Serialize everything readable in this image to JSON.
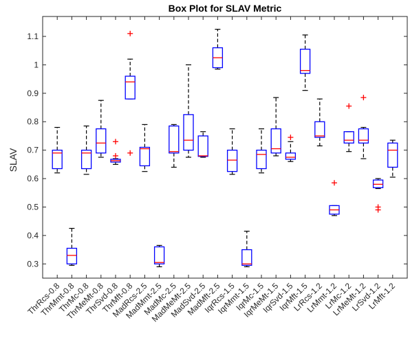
{
  "chart_data": {
    "type": "box",
    "title": "Box Plot for SLAV Metric",
    "xlabel": "",
    "ylabel": "SLAV",
    "ylim": [
      0.25,
      1.17
    ],
    "yticks": [
      0.3,
      0.4,
      0.5,
      0.6,
      0.7,
      0.8,
      0.9,
      1,
      1.1
    ],
    "ytick_labels": [
      "0.3",
      "0.4",
      "0.5",
      "0.6",
      "0.7",
      "0.8",
      "0.9",
      "1",
      "1.1"
    ],
    "grid": false,
    "box_color": "#0000ff",
    "median_color": "#ff0000",
    "whisker_color": "#000000",
    "outlier_color": "#ff0000",
    "categories": [
      "ThrRcs-0.8",
      "ThrMmt-0.8",
      "ThrMc-0.8",
      "ThrMeMt-0.8",
      "ThrSvd-0.8",
      "ThrMft-0.8",
      "MadRcs-2.5",
      "MadMmt-2.5",
      "MadMc-2.5",
      "MadMeMt-2.5",
      "MadSvd-2.5",
      "MadMft-2.5",
      "IqrRcs-1.5",
      "IqrMmt-1.5",
      "IqrMc-1.5",
      "IqrMeMt-1.5",
      "IqrSvd-1.5",
      "IqrMft-1.5",
      "LrRcs-1.2",
      "LrMmt-1.2",
      "LrMc-1.2",
      "LrMeMt-1.2",
      "LrSvd-1.2",
      "LrMft-1.2"
    ],
    "boxes": [
      {
        "whisker_low": 0.62,
        "q1": 0.635,
        "median": 0.69,
        "q3": 0.7,
        "whisker_high": 0.78,
        "outliers": []
      },
      {
        "whisker_low": 0.295,
        "q1": 0.3,
        "median": 0.33,
        "q3": 0.355,
        "whisker_high": 0.425,
        "outliers": []
      },
      {
        "whisker_low": 0.615,
        "q1": 0.635,
        "median": 0.69,
        "q3": 0.7,
        "whisker_high": 0.785,
        "outliers": []
      },
      {
        "whisker_low": 0.675,
        "q1": 0.69,
        "median": 0.725,
        "q3": 0.775,
        "whisker_high": 0.875,
        "outliers": []
      },
      {
        "whisker_low": 0.65,
        "q1": 0.658,
        "median": 0.663,
        "q3": 0.668,
        "whisker_high": 0.67,
        "outliers": [
          0.73,
          0.68
        ]
      },
      {
        "whisker_low": 0.88,
        "q1": 0.88,
        "median": 0.94,
        "q3": 0.96,
        "whisker_high": 1.02,
        "outliers": [
          1.11,
          0.69
        ]
      },
      {
        "whisker_low": 0.625,
        "q1": 0.645,
        "median": 0.705,
        "q3": 0.71,
        "whisker_high": 0.79,
        "outliers": []
      },
      {
        "whisker_low": 0.29,
        "q1": 0.3,
        "median": 0.305,
        "q3": 0.36,
        "whisker_high": 0.365,
        "outliers": []
      },
      {
        "whisker_low": 0.64,
        "q1": 0.69,
        "median": 0.695,
        "q3": 0.785,
        "whisker_high": 0.79,
        "outliers": []
      },
      {
        "whisker_low": 0.675,
        "q1": 0.7,
        "median": 0.735,
        "q3": 0.825,
        "whisker_high": 1.0,
        "outliers": []
      },
      {
        "whisker_low": 0.675,
        "q1": 0.678,
        "median": 0.68,
        "q3": 0.75,
        "whisker_high": 0.765,
        "outliers": []
      },
      {
        "whisker_low": 0.985,
        "q1": 0.99,
        "median": 1.025,
        "q3": 1.06,
        "whisker_high": 1.125,
        "outliers": []
      },
      {
        "whisker_low": 0.615,
        "q1": 0.625,
        "median": 0.665,
        "q3": 0.7,
        "whisker_high": 0.775,
        "outliers": []
      },
      {
        "whisker_low": 0.29,
        "q1": 0.295,
        "median": 0.3,
        "q3": 0.35,
        "whisker_high": 0.415,
        "outliers": []
      },
      {
        "whisker_low": 0.62,
        "q1": 0.635,
        "median": 0.685,
        "q3": 0.7,
        "whisker_high": 0.775,
        "outliers": []
      },
      {
        "whisker_low": 0.68,
        "q1": 0.69,
        "median": 0.705,
        "q3": 0.775,
        "whisker_high": 0.885,
        "outliers": []
      },
      {
        "whisker_low": 0.66,
        "q1": 0.668,
        "median": 0.675,
        "q3": 0.69,
        "whisker_high": 0.73,
        "outliers": [
          0.745
        ]
      },
      {
        "whisker_low": 0.91,
        "q1": 0.97,
        "median": 0.98,
        "q3": 1.055,
        "whisker_high": 1.105,
        "outliers": []
      },
      {
        "whisker_low": 0.715,
        "q1": 0.745,
        "median": 0.75,
        "q3": 0.8,
        "whisker_high": 0.88,
        "outliers": []
      },
      {
        "whisker_low": 0.47,
        "q1": 0.475,
        "median": 0.49,
        "q3": 0.505,
        "whisker_high": 0.505,
        "outliers": [
          0.585
        ]
      },
      {
        "whisker_low": 0.695,
        "q1": 0.725,
        "median": 0.735,
        "q3": 0.765,
        "whisker_high": 0.765,
        "outliers": [
          0.855
        ]
      },
      {
        "whisker_low": 0.67,
        "q1": 0.725,
        "median": 0.735,
        "q3": 0.775,
        "whisker_high": 0.78,
        "outliers": [
          0.885
        ]
      },
      {
        "whisker_low": 0.565,
        "q1": 0.568,
        "median": 0.58,
        "q3": 0.595,
        "whisker_high": 0.6,
        "outliers": [
          0.5,
          0.49
        ]
      },
      {
        "whisker_low": 0.605,
        "q1": 0.64,
        "median": 0.7,
        "q3": 0.725,
        "whisker_high": 0.735,
        "outliers": []
      }
    ]
  }
}
